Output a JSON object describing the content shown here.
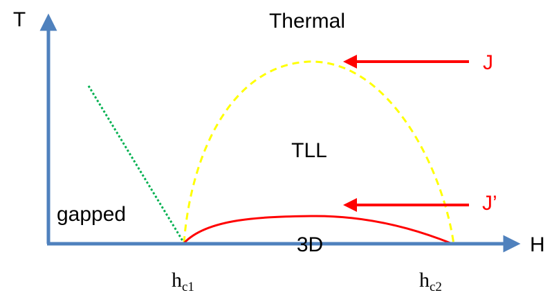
{
  "axes": {
    "y_label": "T",
    "x_label": "H",
    "color": "#4f81bd"
  },
  "ticks": {
    "hc1": {
      "base": "h",
      "sub": "c1"
    },
    "hc2": {
      "base": "h",
      "sub": "c2"
    }
  },
  "regions": {
    "thermal": "Thermal",
    "tll": "TLL",
    "gapped": "gapped",
    "three_d": "3D"
  },
  "couplings": {
    "j": "J",
    "j_prime": "J’",
    "color": "#ff0000"
  },
  "curves": {
    "tll_boundary_color": "#ffff00",
    "gapped_boundary_color": "#00b050",
    "order_boundary_color": "#ff0000"
  }
}
